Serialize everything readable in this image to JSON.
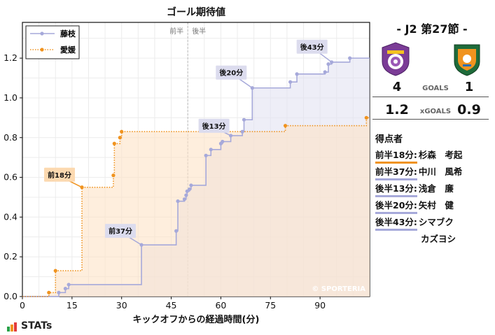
{
  "chart_data": {
    "type": "line",
    "title": "ゴール期待値",
    "xlabel": "キックオフからの経過時間(分)",
    "ylabel": "",
    "xlim": [
      0,
      105
    ],
    "ylim": [
      0,
      1.38
    ],
    "xticks": [
      0,
      15,
      30,
      45,
      60,
      75,
      90
    ],
    "yticks": [
      0.0,
      0.2,
      0.4,
      0.6,
      0.8,
      1.0,
      1.2
    ],
    "halftime_labels": [
      "前半",
      "後半"
    ],
    "halftime_x": 50,
    "legend_position": "top-left",
    "watermark": "© SPORTERIA",
    "series": [
      {
        "name": "藤枝",
        "color": "#a6a9da",
        "fill": "#e3e3f2",
        "style": "solid",
        "points": [
          [
            0,
            0
          ],
          [
            11,
            0.02
          ],
          [
            13,
            0.04
          ],
          [
            14,
            0.06
          ],
          [
            36,
            0.26
          ],
          [
            46.5,
            0.33
          ],
          [
            47,
            0.48
          ],
          [
            49,
            0.49
          ],
          [
            49.5,
            0.51
          ],
          [
            49.8,
            0.53
          ],
          [
            50.5,
            0.54
          ],
          [
            51,
            0.56
          ],
          [
            55.5,
            0.71
          ],
          [
            57,
            0.74
          ],
          [
            60,
            0.77
          ],
          [
            60.5,
            0.78
          ],
          [
            63,
            0.81
          ],
          [
            66.5,
            0.83
          ],
          [
            67,
            0.89
          ],
          [
            69.5,
            1.05
          ],
          [
            81,
            1.08
          ],
          [
            83,
            1.12
          ],
          [
            91.5,
            1.13
          ],
          [
            92.5,
            1.17
          ],
          [
            93.5,
            1.18
          ],
          [
            99,
            1.2
          ],
          [
            105,
            1.2
          ]
        ]
      },
      {
        "name": "愛媛",
        "color": "#f0931f",
        "fill": "#fde3c7",
        "style": "dotted",
        "points": [
          [
            0,
            0
          ],
          [
            8,
            0.02
          ],
          [
            10,
            0.13
          ],
          [
            18,
            0.55
          ],
          [
            27.5,
            0.61
          ],
          [
            27.8,
            0.77
          ],
          [
            29.5,
            0.8
          ],
          [
            30,
            0.83
          ],
          [
            79.5,
            0.86
          ],
          [
            104,
            0.9
          ],
          [
            105,
            0.9
          ]
        ]
      }
    ],
    "annotations": [
      {
        "text": "後43分",
        "x": 93.5,
        "y": 1.18,
        "series": "藤枝"
      },
      {
        "text": "後20分",
        "x": 69.5,
        "y": 1.05,
        "series": "藤枝"
      },
      {
        "text": "後13分",
        "x": 63,
        "y": 0.81,
        "series": "藤枝"
      },
      {
        "text": "前37分",
        "x": 36,
        "y": 0.26,
        "series": "藤枝"
      },
      {
        "text": "前18分",
        "x": 18,
        "y": 0.55,
        "series": "愛媛"
      }
    ]
  },
  "match": {
    "title": "- J2 第27節 -",
    "goals_label": "GOALS",
    "xgoals_label": "xGOALS",
    "home_goals": "4",
    "away_goals": "1",
    "home_xg": "1.2",
    "away_xg": "0.9",
    "home_crest_text": "FUJIEDA",
    "home_crest_color": "#7b3c96",
    "away_crest_color": "#1e6b3a"
  },
  "scorers": {
    "heading": "得点者",
    "items": [
      {
        "time": "前半18分:",
        "name": "杉森　考起",
        "team": "away"
      },
      {
        "time": "前半37分:",
        "name": "中川　風希",
        "team": "home"
      },
      {
        "time": "後半13分:",
        "name": "浅倉　廉",
        "team": "home"
      },
      {
        "time": "後半20分:",
        "name": "矢村　健",
        "team": "home"
      },
      {
        "time": "後半43分:",
        "name": "シマブク",
        "team": "home"
      },
      {
        "time": "",
        "name": "カズヨシ",
        "team": "home"
      }
    ]
  },
  "brand": {
    "name": "STATs",
    "bar_colors": [
      "#2aa147",
      "#f0931f",
      "#e23b3b"
    ]
  }
}
